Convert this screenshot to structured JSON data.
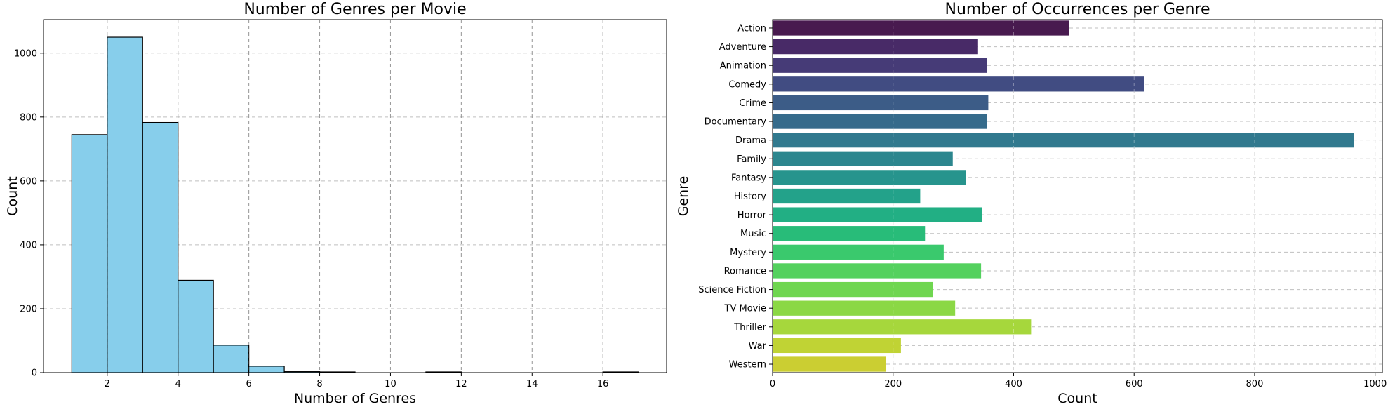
{
  "chart_data": [
    {
      "type": "bar",
      "title": "Number of Genres per Movie",
      "xlabel": "Number of Genres",
      "ylabel": "Count",
      "xlim": [
        0.2,
        17.8
      ],
      "ylim": [
        0,
        1105
      ],
      "xticks": [
        2,
        4,
        6,
        8,
        10,
        12,
        14,
        16
      ],
      "yticks": [
        0,
        200,
        400,
        600,
        800,
        1000
      ],
      "grid": true,
      "bar_color": "#87ceeb",
      "bins": [
        {
          "x0": 1,
          "x1": 2,
          "value": 745
        },
        {
          "x0": 2,
          "x1": 3,
          "value": 1050
        },
        {
          "x0": 3,
          "x1": 4,
          "value": 783
        },
        {
          "x0": 4,
          "x1": 5,
          "value": 289
        },
        {
          "x0": 5,
          "x1": 6,
          "value": 86
        },
        {
          "x0": 6,
          "x1": 7,
          "value": 20
        },
        {
          "x0": 7,
          "x1": 8,
          "value": 3
        },
        {
          "x0": 8,
          "x1": 9,
          "value": 2
        },
        {
          "x0": 9,
          "x1": 10,
          "value": 0
        },
        {
          "x0": 10,
          "x1": 11,
          "value": 0
        },
        {
          "x0": 11,
          "x1": 12,
          "value": 1
        },
        {
          "x0": 12,
          "x1": 13,
          "value": 0
        },
        {
          "x0": 13,
          "x1": 14,
          "value": 0
        },
        {
          "x0": 14,
          "x1": 15,
          "value": 0
        },
        {
          "x0": 15,
          "x1": 16,
          "value": 0
        },
        {
          "x0": 16,
          "x1": 17,
          "value": 1
        }
      ]
    },
    {
      "type": "bar",
      "orientation": "horizontal",
      "title": "Number of Occurrences per Genre",
      "xlabel": "Count",
      "ylabel": "Genre",
      "xlim": [
        0,
        1012
      ],
      "xticks": [
        0,
        200,
        400,
        600,
        800,
        1000
      ],
      "grid": true,
      "palette": "viridis",
      "categories": [
        "Action",
        "Adventure",
        "Animation",
        "Comedy",
        "Crime",
        "Documentary",
        "Drama",
        "Family",
        "Fantasy",
        "History",
        "Horror",
        "Music",
        "Mystery",
        "Romance",
        "Science Fiction",
        "TV Movie",
        "Thriller",
        "War",
        "Western"
      ],
      "values": [
        492,
        341,
        356,
        617,
        358,
        356,
        965,
        299,
        321,
        245,
        348,
        253,
        284,
        346,
        266,
        303,
        429,
        213,
        188
      ],
      "colors": [
        "#481a4f",
        "#482a67",
        "#463b77",
        "#414c82",
        "#3c5c87",
        "#366b8b",
        "#31798e",
        "#2c868e",
        "#27948d",
        "#23a28a",
        "#22af84",
        "#28bc79",
        "#3ac96d",
        "#54d15e",
        "#6fd650",
        "#8bd845",
        "#a6d73c",
        "#c0d334",
        "#cbce32"
      ]
    }
  ]
}
